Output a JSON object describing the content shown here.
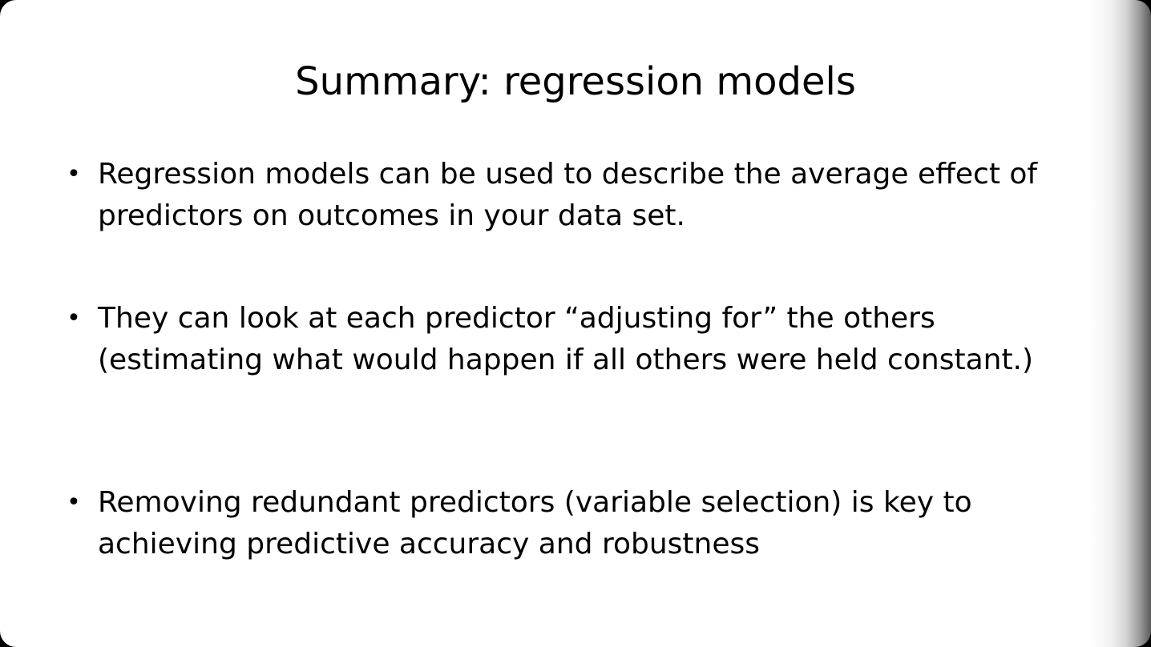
{
  "slide": {
    "title": "Summary: regression models",
    "bullet_symbol": "•",
    "bullets": [
      "Regression models can be used to describe the average effect of predictors on outcomes in your data set.",
      "They can look at each predictor “adjusting for” the others (estimating what would happen if all others were held constant.)",
      "Removing redundant predictors (variable selection) is key to achieving predictive accuracy and robustness"
    ]
  }
}
